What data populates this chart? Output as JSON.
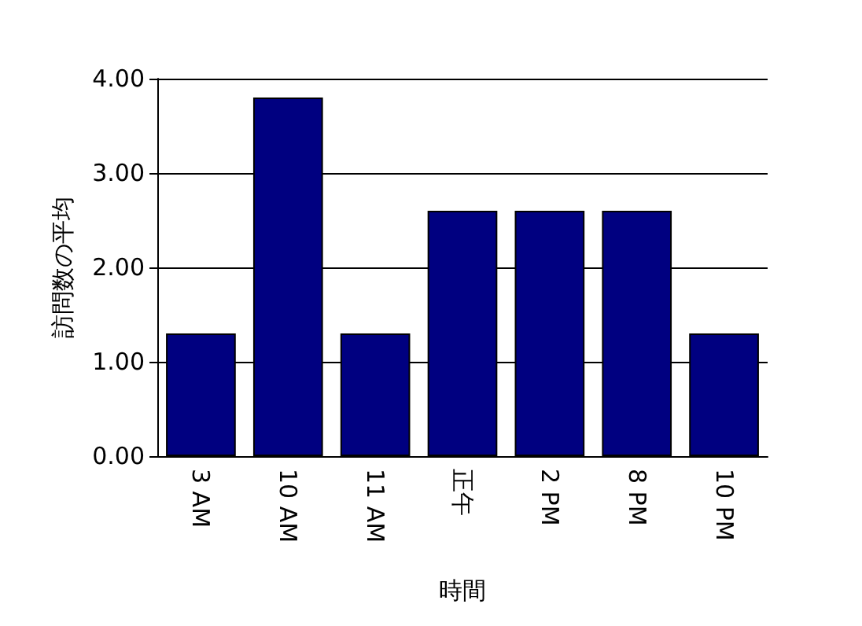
{
  "chart_data": {
    "type": "bar",
    "xlabel": "時間",
    "ylabel": "訪問数の平均",
    "categories": [
      "3 AM",
      "10 AM",
      "11 AM",
      "正午",
      "2 PM",
      "8 PM",
      "10 PM"
    ],
    "values": [
      1.3,
      3.8,
      1.3,
      2.6,
      2.6,
      2.6,
      1.3
    ],
    "color": "#000080",
    "ylim": [
      0,
      4
    ],
    "yticks": [
      {
        "value": 0,
        "label": "0.00"
      },
      {
        "value": 1,
        "label": "1.00"
      },
      {
        "value": 2,
        "label": "2.00"
      },
      {
        "value": 3,
        "label": "3.00"
      },
      {
        "value": 4,
        "label": "4.00"
      }
    ],
    "grid": "y"
  }
}
